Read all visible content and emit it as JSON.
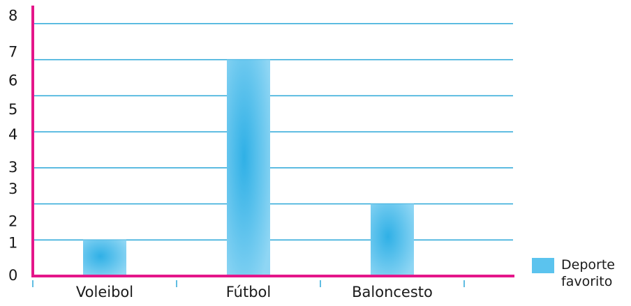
{
  "chart_data": {
    "type": "bar",
    "categories": [
      "Voleibol",
      "Fútbol",
      "Baloncesto"
    ],
    "series": [
      {
        "name": "Deporte favorito",
        "color": "#5bc3ee",
        "values": [
          1,
          6,
          2
        ]
      }
    ],
    "ylim": [
      0,
      7.5
    ],
    "yticks": [
      0,
      1,
      2,
      3,
      4,
      5,
      6,
      7
    ],
    "ytick_labels": [
      {
        "value": 0,
        "label": "0"
      },
      {
        "value": 0.9,
        "label": "1"
      },
      {
        "value": 1.5,
        "label": "2"
      },
      {
        "value": 2.4,
        "label": "3"
      },
      {
        "value": 3,
        "label": "3"
      },
      {
        "value": 3.9,
        "label": "4"
      },
      {
        "value": 4.6,
        "label": "5"
      },
      {
        "value": 5.4,
        "label": "6"
      },
      {
        "value": 6.2,
        "label": "7"
      },
      {
        "value": 7.2,
        "label": "8"
      }
    ],
    "grid": true,
    "legend": "right"
  }
}
